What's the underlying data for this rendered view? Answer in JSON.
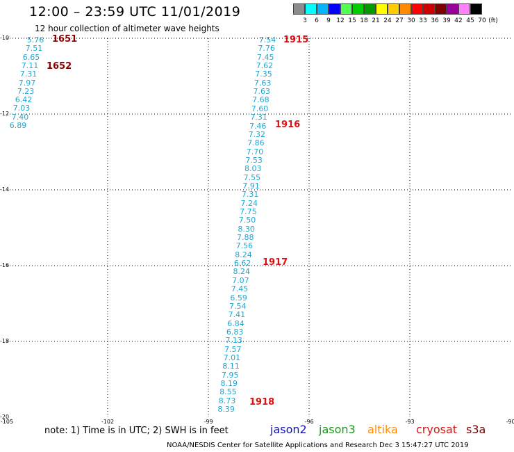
{
  "header": {
    "title": "12:00 – 23:59 UTC 11/01/2019",
    "subtitle": "12 hour collection of altimeter wave heights"
  },
  "scale": {
    "labels": [
      "3",
      "6",
      "9",
      "12",
      "15",
      "18",
      "21",
      "24",
      "27",
      "30",
      "33",
      "36",
      "39",
      "42",
      "45",
      "70"
    ],
    "unit": "(ft)",
    "colors": [
      "#8c8c8c",
      "#00ffff",
      "#00b4ff",
      "#0000ff",
      "#50ff50",
      "#00cc00",
      "#009900",
      "#ffff00",
      "#ffcc00",
      "#ff8c00",
      "#ff0000",
      "#cc0000",
      "#7f0000",
      "#990099",
      "#ff80ff",
      "#000000"
    ]
  },
  "axes": {
    "lat_labels": [
      "-10",
      "-12",
      "-14",
      "-16",
      "-18",
      "-20"
    ],
    "lon_labels": [
      "-105",
      "-102",
      "-99",
      "-96",
      "-93",
      "-90"
    ]
  },
  "passes": [
    {
      "label": "1651",
      "color": "#8b0000"
    },
    {
      "label": "1652",
      "color": "#8b0000"
    },
    {
      "label": "1915",
      "color": "#dd1111"
    },
    {
      "label": "1916",
      "color": "#dd1111"
    },
    {
      "label": "1917",
      "color": "#dd1111"
    },
    {
      "label": "1918",
      "color": "#dd1111"
    }
  ],
  "wave_heights": {
    "track_a": [
      "5.76",
      "7.51",
      "6.65",
      "7.11",
      "7.31",
      "7.97",
      "7.23",
      "6.42",
      "7.03",
      "7.40",
      "6.89"
    ],
    "track_b": [
      "7.54",
      "7.76",
      "7.45",
      "7.62",
      "7.35",
      "7.63",
      "7.63",
      "7.68",
      "7.60",
      "7.31",
      "7.46",
      "7.32",
      "7.86",
      "7.70",
      "7.53",
      "8.03",
      "7.55",
      "7.91",
      "7.31",
      "7.24",
      "7.75",
      "7.50",
      "8.30",
      "7.88",
      "7.56",
      "8.24",
      "6.62",
      "8.24",
      "7.07",
      "7.45",
      "6.59",
      "7.54",
      "7.41",
      "6.84",
      "6.83",
      "7.13",
      "7.57",
      "7.01",
      "8.11",
      "7.95",
      "8.19",
      "8.55",
      "8.73",
      "8.39"
    ]
  },
  "footer": {
    "note": "note: 1) Time is in UTC; 2) SWH is in feet",
    "satellites": [
      {
        "name": "jason2",
        "color": "#1010c8"
      },
      {
        "name": "jason3",
        "color": "#129a12"
      },
      {
        "name": "altika",
        "color": "#ff8c00"
      },
      {
        "name": "cryosat",
        "color": "#dd1111"
      },
      {
        "name": "s3a",
        "color": "#7a0000"
      }
    ],
    "credit": "NOAA/NESDIS Center for Satellite Applications and Research    Dec  3 15:47:27 UTC 2019"
  }
}
